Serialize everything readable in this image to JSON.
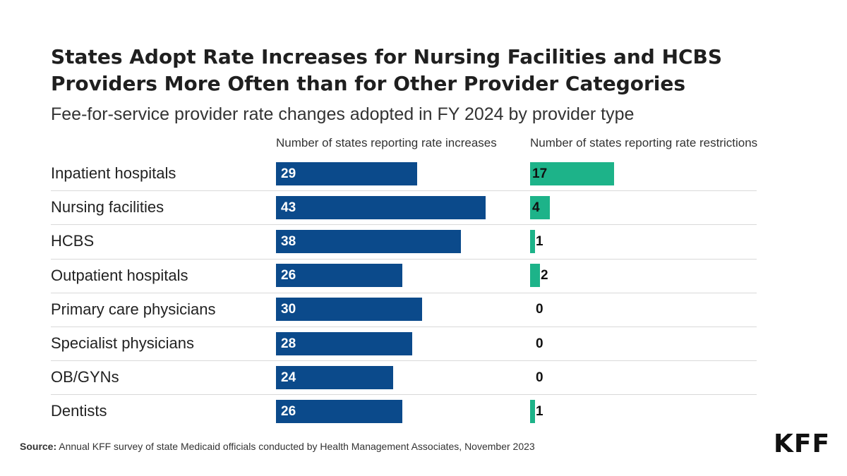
{
  "chart_data": {
    "type": "bar",
    "title": "States Adopt Rate Increases for Nursing Facilities and HCBS Providers More Often than for Other Provider Categories",
    "subtitle": "Fee-for-service provider rate changes adopted in FY 2024 by provider type",
    "categories": [
      "Inpatient hospitals",
      "Nursing facilities",
      "HCBS",
      "Outpatient hospitals",
      "Primary care physicians",
      "Specialist physicians",
      "OB/GYNs",
      "Dentists"
    ],
    "series": [
      {
        "name": "Number of states reporting rate increases",
        "values": [
          29,
          43,
          38,
          26,
          30,
          28,
          24,
          26
        ],
        "color": "#0b4a8b"
      },
      {
        "name": "Number of states reporting rate restrictions",
        "values": [
          17,
          4,
          1,
          2,
          0,
          0,
          0,
          1
        ],
        "color": "#1db389"
      }
    ],
    "xlabel": "",
    "ylabel": "",
    "legend": "column headers"
  },
  "source": {
    "label": "Source:",
    "text": " Annual KFF survey of state Medicaid officials conducted by Health Management Associates, November 2023"
  },
  "logo": "KFF"
}
